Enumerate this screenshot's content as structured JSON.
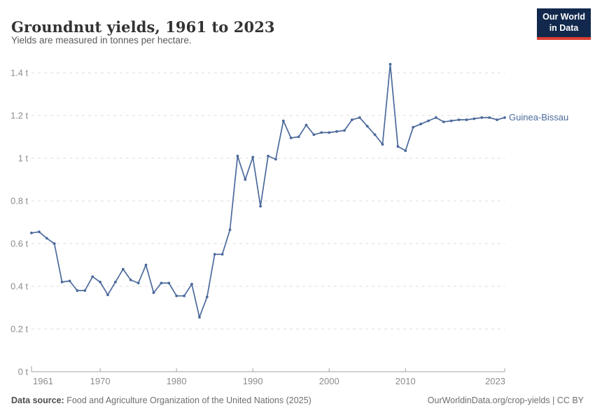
{
  "header": {
    "title": "Groundnut yields, 1961 to 2023",
    "subtitle": "Yields are measured in tonnes per hectare.",
    "logo": {
      "line1": "Our World",
      "line2": "in Data"
    }
  },
  "chart_data": {
    "type": "line",
    "title": "Groundnut yields, 1961 to 2023",
    "ylabel": "tonnes per hectare",
    "xlim": [
      1961,
      2023
    ],
    "ylim": [
      0,
      1.4
    ],
    "grid": true,
    "legend_position": "right-of-last-point",
    "x_ticks": [
      1961,
      1970,
      1980,
      1990,
      2000,
      2010,
      2023
    ],
    "y_ticks": [
      0,
      0.2,
      0.4,
      0.6,
      0.8,
      1,
      1.2,
      1.4
    ],
    "y_unit_suffix": " t",
    "series": [
      {
        "name": "Guinea-Bissau",
        "color": "#4C6A9C",
        "x": [
          1961,
          1962,
          1963,
          1964,
          1965,
          1966,
          1967,
          1968,
          1969,
          1970,
          1971,
          1972,
          1973,
          1974,
          1975,
          1976,
          1977,
          1978,
          1979,
          1980,
          1981,
          1982,
          1983,
          1984,
          1985,
          1986,
          1987,
          1988,
          1989,
          1990,
          1991,
          1992,
          1993,
          1994,
          1995,
          1996,
          1997,
          1998,
          1999,
          2000,
          2001,
          2002,
          2003,
          2004,
          2005,
          2006,
          2007,
          2008,
          2009,
          2010,
          2011,
          2012,
          2013,
          2014,
          2015,
          2016,
          2017,
          2018,
          2019,
          2020,
          2021,
          2022,
          2023
        ],
        "values": [
          0.65,
          0.655,
          0.625,
          0.6,
          0.42,
          0.425,
          0.38,
          0.38,
          0.445,
          0.42,
          0.36,
          0.42,
          0.48,
          0.43,
          0.415,
          0.5,
          0.37,
          0.415,
          0.415,
          0.355,
          0.355,
          0.41,
          0.255,
          0.35,
          0.55,
          0.55,
          0.665,
          1.01,
          0.9,
          1.005,
          0.775,
          1.01,
          0.995,
          1.175,
          1.095,
          1.1,
          1.155,
          1.11,
          1.12,
          1.12,
          1.125,
          1.13,
          1.18,
          1.19,
          1.15,
          1.11,
          1.065,
          1.44,
          1.055,
          1.035,
          1.145,
          1.16,
          1.175,
          1.19,
          1.17,
          1.175,
          1.18,
          1.18,
          1.185,
          1.19,
          1.19,
          1.18,
          1.19
        ]
      }
    ]
  },
  "footer": {
    "source_label": "Data source:",
    "source_text": "Food and Agriculture Organization of the United Nations (2025)",
    "credit": "OurWorldinData.org/crop-yields | CC BY"
  },
  "colors": {
    "line": "#4C6A9C",
    "grid": "#dddddd",
    "axis": "#a3a3a3",
    "tick_label": "#8c8c8c",
    "logo_bg": "#12294d",
    "logo_red": "#dc3e32"
  }
}
